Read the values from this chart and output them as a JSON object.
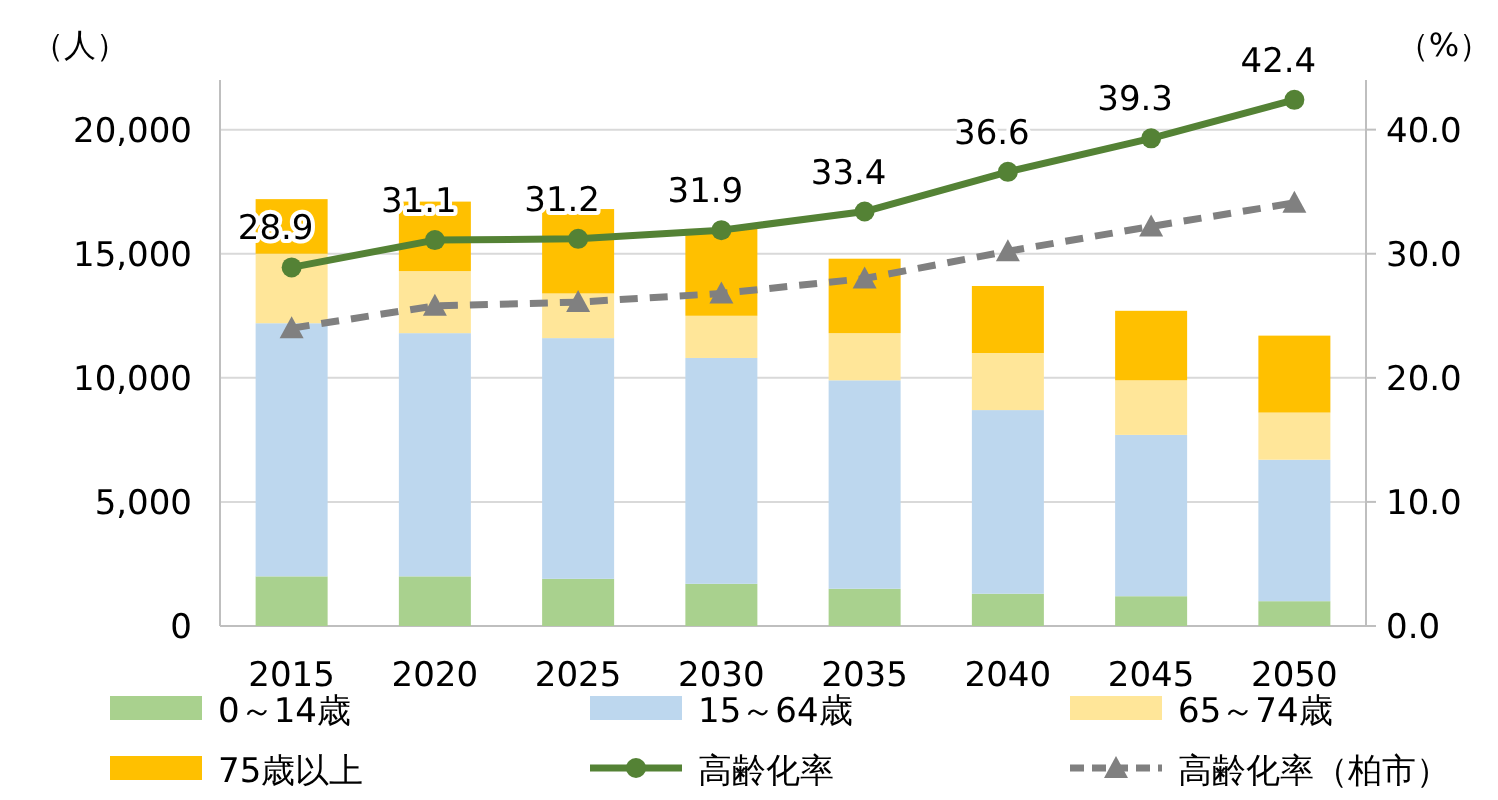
{
  "chart_data": {
    "type": "bar",
    "stacked": true,
    "ylabel": "（人）",
    "y2label": "（%）",
    "categories": [
      "2015",
      "2020",
      "2025",
      "2030",
      "2035",
      "2040",
      "2045",
      "2050"
    ],
    "ylim": [
      0,
      22000
    ],
    "yticks": [
      {
        "value": 0,
        "label": "0"
      },
      {
        "value": 5000,
        "label": "5,000"
      },
      {
        "value": 10000,
        "label": "10,000"
      },
      {
        "value": 15000,
        "label": "15,000"
      },
      {
        "value": 20000,
        "label": "20,000"
      }
    ],
    "y2lim": [
      0,
      44
    ],
    "y2ticks": [
      {
        "value": 0,
        "label": "0.0"
      },
      {
        "value": 10,
        "label": "10.0"
      },
      {
        "value": 20,
        "label": "20.0"
      },
      {
        "value": 30,
        "label": "30.0"
      },
      {
        "value": 40,
        "label": "40.0"
      }
    ],
    "grid": "y",
    "legend": "bottom",
    "series": [
      {
        "name": "0～14歳",
        "color": "#a9d18e",
        "values": [
          2000,
          2000,
          1900,
          1700,
          1500,
          1300,
          1200,
          1000
        ]
      },
      {
        "name": "15～64歳",
        "color": "#bdd7ee",
        "values": [
          10200,
          9800,
          9700,
          9100,
          8400,
          7400,
          6500,
          5700
        ]
      },
      {
        "name": "65～74歳",
        "color": "#ffe699",
        "values": [
          2800,
          2500,
          1800,
          1700,
          1900,
          2300,
          2200,
          1900
        ]
      },
      {
        "name": "75歳以上",
        "color": "#ffc000",
        "values": [
          2200,
          2800,
          3400,
          3500,
          3000,
          2700,
          2800,
          3100
        ]
      },
      {
        "name": "高齢化率",
        "type": "line",
        "axis": "y2",
        "color": "#548235",
        "marker": "circle",
        "line_style": "solid",
        "values": [
          28.9,
          31.1,
          31.2,
          31.9,
          33.4,
          36.6,
          39.3,
          42.4
        ],
        "value_labels": [
          "28.9",
          "31.1",
          "31.2",
          "31.9",
          "33.4",
          "36.6",
          "39.3",
          "42.4"
        ]
      },
      {
        "name": "高齢化率（柏市）",
        "type": "line",
        "axis": "y2",
        "color": "#808080",
        "marker": "triangle",
        "line_style": "dashed",
        "values": [
          24.0,
          25.8,
          26.1,
          26.8,
          28.0,
          30.2,
          32.2,
          34.1
        ]
      }
    ]
  }
}
